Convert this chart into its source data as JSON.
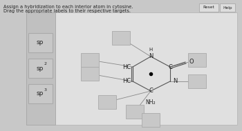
{
  "title_line1": "Assign a hybridization to each interior atom in cytosine.",
  "title_line2": "Drag the appropriate labels to their respective targets.",
  "outer_bg": "#c8c8c8",
  "inner_bg": "#e0e0e0",
  "left_panel_bg": "#c0c0c0",
  "box_fill": "#c8c8c8",
  "box_edge": "#aaaaaa",
  "btn_fill": "#dddddd",
  "btn_edge": "#aaaaaa",
  "text_color": "#222222",
  "bond_color": "#555555",
  "labels_left": [
    "sp",
    "sp2",
    "sp3"
  ],
  "reset_btn": "Reset",
  "help_btn": "Help",
  "font_title": 4.8,
  "font_mol": 6.0,
  "font_label": 6.5
}
